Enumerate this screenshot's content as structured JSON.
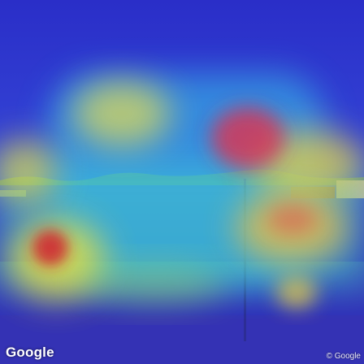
{
  "logo": {
    "text": "Google"
  },
  "attribution": {
    "text": "© Google"
  },
  "colors": {
    "heat_low": "#2b2fd0",
    "heat_mid": "#3fd0e0",
    "heat_high_yellow": "#f0e040",
    "heat_peak": "#e03050",
    "water": "#3a4aa0",
    "shoreline": "#7a8a60"
  }
}
